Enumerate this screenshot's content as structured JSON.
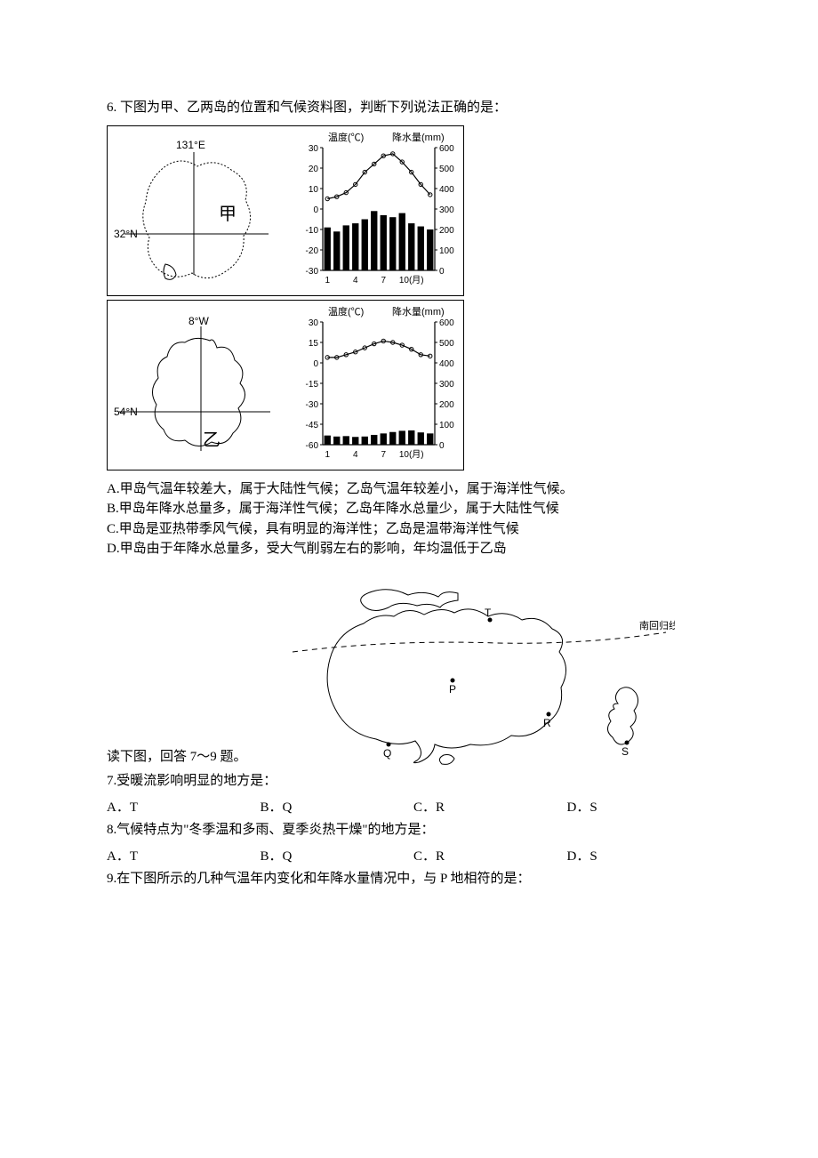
{
  "q6": {
    "stem": "6. 下图为甲、乙两岛的位置和气候资料图，判断下列说法正确的是：",
    "panelA": {
      "map_label": "甲",
      "lon_label": "131°E",
      "lat_label": "32°N",
      "temp_axis": "温度(℃)",
      "precip_axis": "降水量(mm)",
      "temp_ticks": [
        30,
        20,
        10,
        0,
        -10,
        -20,
        -30
      ],
      "precip_ticks": [
        600,
        500,
        400,
        300,
        200,
        100,
        0
      ],
      "x_ticks": [
        "1",
        "4",
        "7",
        "10(月)"
      ],
      "temp_series": [
        5,
        6,
        8,
        12,
        18,
        22,
        26,
        27,
        23,
        18,
        12,
        7
      ],
      "precip_series": [
        210,
        190,
        220,
        230,
        250,
        290,
        270,
        260,
        280,
        230,
        215,
        200
      ],
      "temp_color": "#000000",
      "bar_color": "#000000",
      "marker": "circle"
    },
    "panelB": {
      "map_label": "乙",
      "lon_label": "8°W",
      "lat_label": "54°N",
      "temp_axis": "温度(℃)",
      "precip_axis": "降水量(mm)",
      "temp_ticks": [
        30,
        15,
        0,
        -15,
        -30,
        -45,
        -60
      ],
      "precip_ticks": [
        600,
        500,
        400,
        300,
        200,
        100,
        0
      ],
      "x_ticks": [
        "1",
        "4",
        "7",
        "10(月)"
      ],
      "temp_series": [
        4,
        4,
        6,
        8,
        11,
        14,
        16,
        15,
        13,
        10,
        6,
        5
      ],
      "precip_series": [
        45,
        40,
        42,
        38,
        40,
        48,
        55,
        62,
        68,
        70,
        60,
        55
      ],
      "temp_color": "#000000",
      "bar_color": "#000000",
      "marker": "circle"
    },
    "options": {
      "A": "A.甲岛气温年较差大，属于大陆性气候；乙岛气温年较差小，属于海洋性气候。",
      "B": "B.甲岛年降水总量多，属于海洋性气候；乙岛年降水总量少，属于大陆性气候",
      "C": "C.甲岛是亚热带季风气候，具有明显的海洋性；乙岛是温带海洋性气候",
      "D": "D.甲岛由于年降水总量多，受大气削弱左右的影响，年均温低于乙岛"
    }
  },
  "readline": "读下图，回答 7～9 题。",
  "ausmap": {
    "labels": {
      "T": "T",
      "P": "P",
      "Q": "Q",
      "R": "R",
      "S": "S",
      "tropic": "南回归线"
    },
    "dash": "5,5",
    "stroke": "#000000"
  },
  "q7": {
    "stem": "7.受暖流影响明显的地方是：",
    "A": "A．T",
    "B": "B．Q",
    "C": "C．R",
    "D": "D．S"
  },
  "q8": {
    "stem": "8.气候特点为\"冬季温和多雨、夏季炎热干燥\"的地方是：",
    "A": "A．T",
    "B": "B．Q",
    "C": "C．R",
    "D": "D．S"
  },
  "q9": {
    "stem": "9.在下图所示的几种气温年内变化和年降水量情况中，与 P 地相符的是："
  }
}
